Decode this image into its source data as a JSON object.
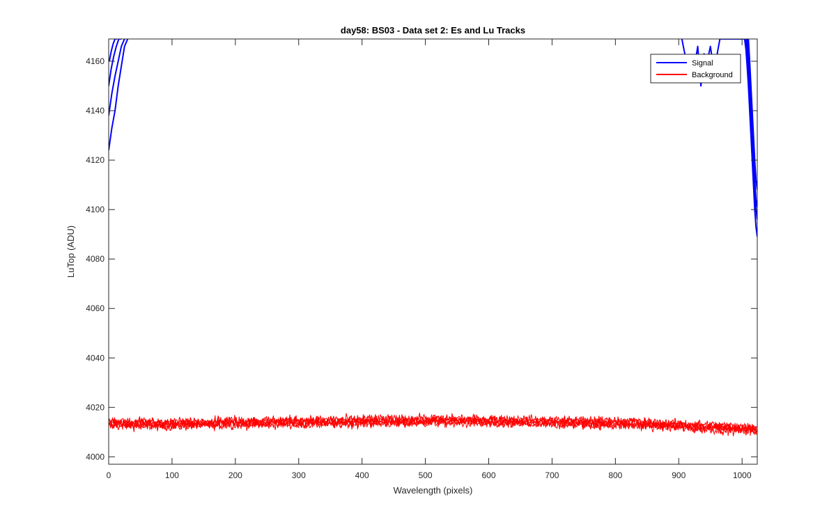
{
  "chart_data": {
    "type": "line",
    "title": "day58: BS03 - Data set 2: Es and Lu Tracks",
    "xlabel": "Wavelength (pixels)",
    "ylabel": "LuTop (ADU)",
    "xlim": [
      0,
      1024
    ],
    "ylim": [
      3997,
      4169
    ],
    "xticks": [
      0,
      100,
      200,
      300,
      400,
      500,
      600,
      700,
      800,
      900,
      1000
    ],
    "yticks": [
      4000,
      4020,
      4040,
      4060,
      4080,
      4100,
      4120,
      4140,
      4160
    ],
    "grid": false,
    "legend": {
      "location": "top-right",
      "entries": [
        "Signal",
        "Background"
      ]
    },
    "series": [
      {
        "name": "Signal",
        "color": "#0000ff",
        "tracks": [
          {
            "x": [
              0,
              5,
              10,
              15,
              20,
              25,
              30
            ],
            "y": [
              4124,
              4133,
              4140,
              4150,
              4158,
              4166,
              4169
            ]
          },
          {
            "x": [
              0,
              5,
              10,
              15,
              20,
              25
            ],
            "y": [
              4138,
              4147,
              4154,
              4160,
              4166,
              4169
            ]
          },
          {
            "x": [
              0,
              4,
              8,
              12,
              16,
              20
            ],
            "y": [
              4150,
              4157,
              4162,
              4166,
              4169,
              4169
            ]
          },
          {
            "x": [
              1,
              4,
              7,
              10,
              13
            ],
            "y": [
              4160,
              4164,
              4167,
              4169,
              4169
            ]
          },
          {
            "x": [
              905,
              908,
              912,
              916,
              920,
              925,
              930,
              935,
              940,
              945,
              950,
              955,
              960,
              965,
              1006
            ],
            "y": [
              4169,
              4165,
              4160,
              4155,
              4162,
              4158,
              4166,
              4150,
              4163,
              4160,
              4166,
              4157,
              4162,
              4169,
              4169
            ]
          },
          {
            "x": [
              1004,
              1006,
              1008,
              1010,
              1012,
              1014,
              1016,
              1018,
              1020,
              1022,
              1024
            ],
            "y": [
              4169,
              4165,
              4158,
              4150,
              4140,
              4130,
              4120,
              4110,
              4100,
              4093,
              4089
            ]
          },
          {
            "x": [
              1006,
              1008,
              1010,
              1012,
              1014,
              1016,
              1018,
              1020,
              1022,
              1024
            ],
            "y": [
              4169,
              4163,
              4155,
              4145,
              4135,
              4125,
              4115,
              4106,
              4100,
              4096
            ]
          },
          {
            "x": [
              1008,
              1010,
              1012,
              1014,
              1016,
              1018,
              1020,
              1022,
              1024
            ],
            "y": [
              4169,
              4162,
              4152,
              4142,
              4132,
              4122,
              4112,
              4104,
              4101
            ]
          },
          {
            "x": [
              1010,
              1012,
              1014,
              1016,
              1018,
              1020,
              1022,
              1024
            ],
            "y": [
              4169,
              4160,
              4150,
              4140,
              4130,
              4120,
              4112,
              4108
            ]
          }
        ]
      },
      {
        "name": "Background",
        "color": "#ff0000",
        "baseline": [
          {
            "x": 0,
            "y": 4013.5
          },
          {
            "x": 100,
            "y": 4013.2
          },
          {
            "x": 200,
            "y": 4013.8
          },
          {
            "x": 300,
            "y": 4014.0
          },
          {
            "x": 400,
            "y": 4014.3
          },
          {
            "x": 500,
            "y": 4014.6
          },
          {
            "x": 600,
            "y": 4014.4
          },
          {
            "x": 700,
            "y": 4014.0
          },
          {
            "x": 800,
            "y": 4013.6
          },
          {
            "x": 900,
            "y": 4012.6
          },
          {
            "x": 1000,
            "y": 4011.4
          },
          {
            "x": 1024,
            "y": 4011.0
          }
        ],
        "range": [
          4007,
          4018
        ]
      }
    ]
  }
}
